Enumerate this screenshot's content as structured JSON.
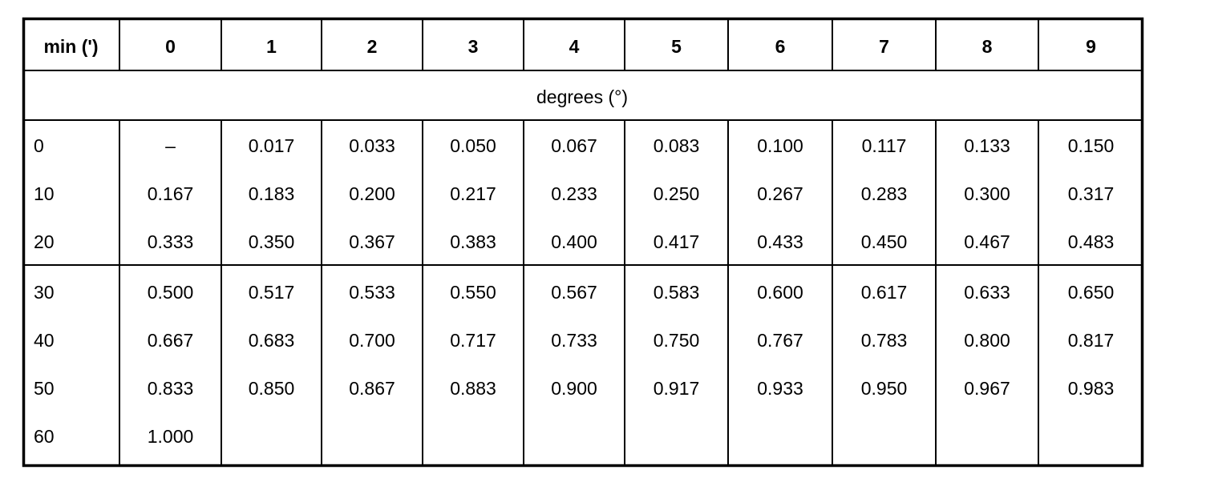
{
  "table": {
    "header": [
      "min (')",
      "0",
      "1",
      "2",
      "3",
      "4",
      "5",
      "6",
      "7",
      "8",
      "9"
    ],
    "subheader": "degrees (°)",
    "groups": [
      [
        [
          "0",
          "–",
          "0.017",
          "0.033",
          "0.050",
          "0.067",
          "0.083",
          "0.100",
          "0.117",
          "0.133",
          "0.150"
        ],
        [
          "10",
          "0.167",
          "0.183",
          "0.200",
          "0.217",
          "0.233",
          "0.250",
          "0.267",
          "0.283",
          "0.300",
          "0.317"
        ],
        [
          "20",
          "0.333",
          "0.350",
          "0.367",
          "0.383",
          "0.400",
          "0.417",
          "0.433",
          "0.450",
          "0.467",
          "0.483"
        ]
      ],
      [
        [
          "30",
          "0.500",
          "0.517",
          "0.533",
          "0.550",
          "0.567",
          "0.583",
          "0.600",
          "0.617",
          "0.633",
          "0.650"
        ],
        [
          "40",
          "0.667",
          "0.683",
          "0.700",
          "0.717",
          "0.733",
          "0.750",
          "0.767",
          "0.783",
          "0.800",
          "0.817"
        ],
        [
          "50",
          "0.833",
          "0.850",
          "0.867",
          "0.883",
          "0.900",
          "0.917",
          "0.933",
          "0.950",
          "0.967",
          "0.983"
        ],
        [
          "60",
          "1.000"
        ]
      ]
    ]
  }
}
